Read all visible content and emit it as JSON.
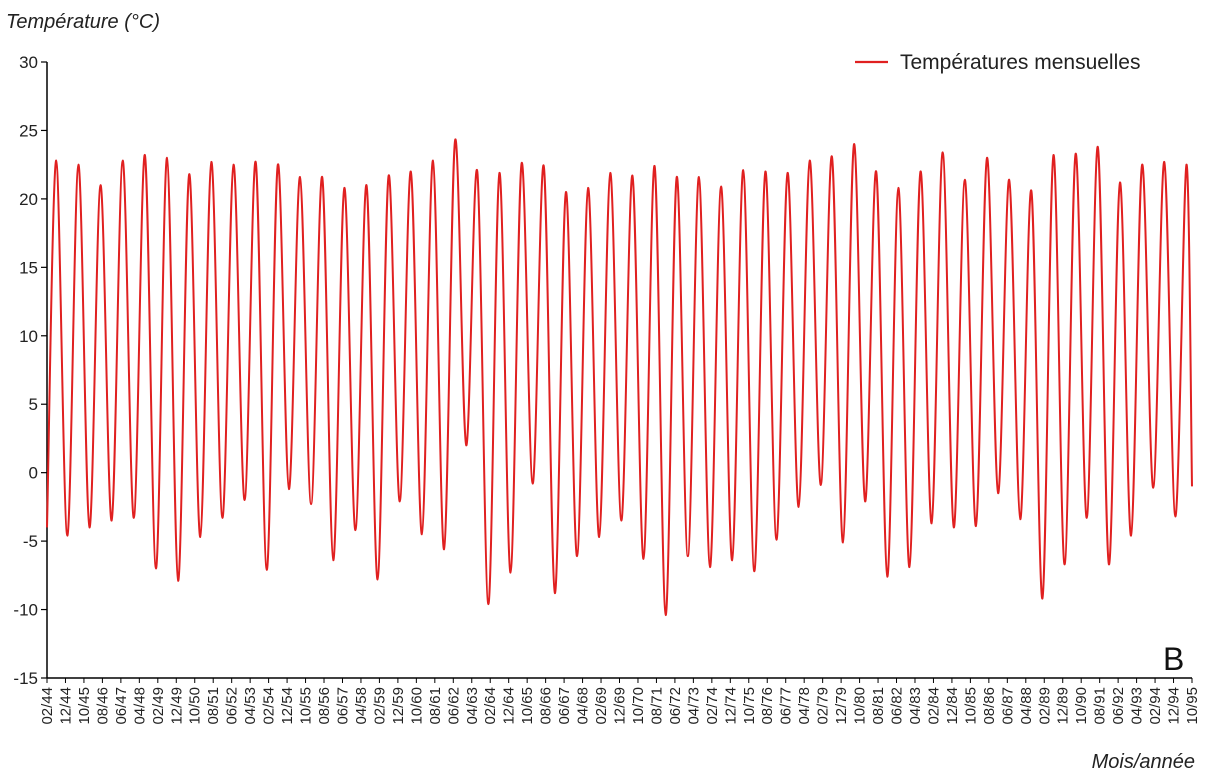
{
  "chart_data": {
    "type": "line",
    "panel_label": "B",
    "ylabel": "Température (°C)",
    "xlabel": "Mois/année",
    "ylim": [
      -15,
      30
    ],
    "y_ticks": [
      30,
      25,
      20,
      15,
      10,
      5,
      0,
      -5,
      -10,
      -15
    ],
    "y_tick_labels": [
      "30",
      "25",
      "20",
      "15",
      "10",
      "5",
      "0",
      "-5",
      "-10",
      "-15"
    ],
    "x_start": "1944-02",
    "x_end": "1995-10",
    "x_tick_labels": [
      "02/44",
      "12/44",
      "10/45",
      "08/46",
      "06/47",
      "04/48",
      "02/49",
      "12/49",
      "10/50",
      "08/51",
      "06/52",
      "04/53",
      "02/54",
      "12/54",
      "10/55",
      "08/56",
      "06/57",
      "04/58",
      "02/59",
      "12/59",
      "10/60",
      "08/61",
      "06/62",
      "04/63",
      "02/64",
      "12/64",
      "10/65",
      "08/66",
      "06/67",
      "04/68",
      "02/69",
      "12/69",
      "10/70",
      "08/71",
      "06/72",
      "04/73",
      "02/74",
      "12/74",
      "10/75",
      "08/76",
      "06/77",
      "04/78",
      "02/79",
      "12/79",
      "10/80",
      "08/81",
      "06/82",
      "04/83",
      "02/84",
      "12/84",
      "10/85",
      "08/86",
      "06/87",
      "04/88",
      "02/89",
      "12/89",
      "10/90",
      "08/91",
      "06/92",
      "04/93",
      "02/94",
      "12/94",
      "10/95"
    ],
    "grid": false,
    "legend_position": "top-right",
    "series": [
      {
        "name": "Températures mensuelles",
        "color": "#e02020",
        "x": [
          "02/44",
          "07/44",
          "01/45",
          "07/45",
          "01/46",
          "07/46",
          "01/47",
          "07/47",
          "01/48",
          "07/48",
          "01/49",
          "07/49",
          "01/50",
          "07/50",
          "01/51",
          "07/51",
          "01/52",
          "07/52",
          "01/53",
          "07/53",
          "01/54",
          "07/54",
          "01/55",
          "07/55",
          "01/56",
          "07/56",
          "01/57",
          "07/57",
          "01/58",
          "07/58",
          "01/59",
          "07/59",
          "01/60",
          "07/60",
          "01/61",
          "07/61",
          "01/62",
          "07/62",
          "01/63",
          "07/63",
          "01/64",
          "07/64",
          "01/65",
          "07/65",
          "01/66",
          "07/66",
          "01/67",
          "07/67",
          "01/68",
          "07/68",
          "01/69",
          "07/69",
          "01/70",
          "07/70",
          "01/71",
          "07/71",
          "01/72",
          "07/72",
          "01/73",
          "07/73",
          "01/74",
          "07/74",
          "01/75",
          "07/75",
          "01/76",
          "07/76",
          "01/77",
          "07/77",
          "01/78",
          "07/78",
          "01/79",
          "07/79",
          "01/80",
          "07/80",
          "01/81",
          "07/81",
          "01/82",
          "07/82",
          "01/83",
          "07/83",
          "01/84",
          "07/84",
          "01/85",
          "07/85",
          "01/86",
          "07/86",
          "01/87",
          "07/87",
          "01/88",
          "07/88",
          "01/89",
          "07/89",
          "01/90",
          "07/90",
          "01/91",
          "07/91",
          "01/92",
          "07/92",
          "01/93",
          "07/93",
          "01/94",
          "07/94",
          "01/95",
          "07/95",
          "10/95"
        ],
        "values": [
          -4.0,
          22.8,
          -4.6,
          22.5,
          -4.0,
          21.0,
          -3.5,
          22.8,
          -3.3,
          23.2,
          -7.0,
          23.0,
          -7.9,
          21.8,
          -4.7,
          22.7,
          -3.3,
          22.5,
          -2.0,
          22.7,
          -7.1,
          22.5,
          -1.2,
          21.6,
          -2.3,
          21.6,
          -6.4,
          20.8,
          -4.2,
          21.0,
          -7.8,
          21.7,
          -2.1,
          22.0,
          -4.5,
          22.8,
          -5.6,
          24.3,
          2.0,
          22.0,
          -9.6,
          21.9,
          -7.3,
          22.6,
          -0.8,
          22.4,
          -8.8,
          20.5,
          -6.1,
          20.8,
          -4.7,
          21.9,
          -3.5,
          21.7,
          -6.3,
          22.4,
          -10.4,
          21.6,
          -6.1,
          21.6,
          -6.9,
          20.9,
          -6.4,
          22.1,
          -7.2,
          22.0,
          -4.9,
          21.9,
          -2.5,
          22.8,
          -0.9,
          23.1,
          -5.1,
          24.0,
          -2.1,
          22.0,
          -7.6,
          20.8,
          -6.9,
          22.0,
          -3.7,
          23.4,
          -4.0,
          21.4,
          -3.9,
          23.0,
          -1.5,
          21.4,
          -3.4,
          20.6,
          -9.2,
          23.2,
          -6.7,
          23.3,
          -3.3,
          23.8,
          -6.7,
          21.2,
          -4.6,
          22.5,
          -1.1,
          22.7,
          -3.2,
          22.5,
          -1.0
        ]
      }
    ]
  }
}
